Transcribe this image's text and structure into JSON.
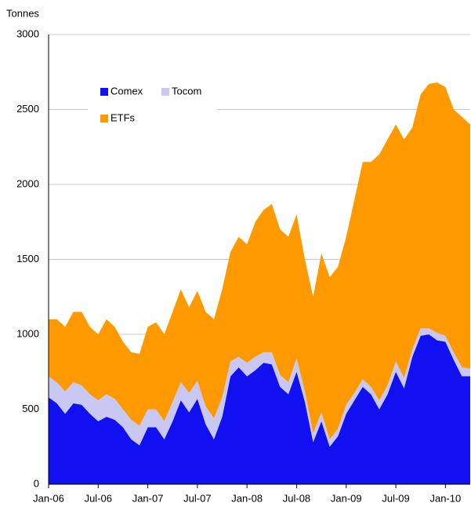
{
  "chart_data": {
    "type": "stacked_area",
    "y_label": "Tonnes",
    "categories": [
      "Jan-06",
      null,
      null,
      null,
      null,
      null,
      "Jul-06",
      null,
      null,
      null,
      null,
      null,
      "Jan-07",
      null,
      null,
      null,
      null,
      null,
      "Jul-07",
      null,
      null,
      null,
      null,
      null,
      "Jan-08",
      null,
      null,
      null,
      null,
      null,
      "Jul-08",
      null,
      null,
      null,
      null,
      null,
      "Jan-09",
      null,
      null,
      null,
      null,
      null,
      "Jul-09",
      null,
      null,
      null,
      null,
      null,
      "Jan-10",
      null,
      null,
      null
    ],
    "series": [
      {
        "name": "Comex",
        "color": "#1010f0",
        "values": [
          580,
          540,
          470,
          540,
          530,
          470,
          420,
          450,
          430,
          380,
          300,
          260,
          380,
          380,
          300,
          420,
          560,
          480,
          570,
          400,
          300,
          450,
          720,
          780,
          720,
          760,
          810,
          800,
          650,
          600,
          750,
          550,
          280,
          420,
          250,
          320,
          470,
          560,
          650,
          600,
          500,
          600,
          750,
          640,
          850,
          990,
          1000,
          960,
          950,
          830,
          720,
          720
        ]
      },
      {
        "name": "Tocom",
        "color": "#c8c8f2",
        "values": [
          140,
          140,
          150,
          140,
          130,
          130,
          140,
          150,
          140,
          120,
          130,
          130,
          120,
          120,
          120,
          130,
          120,
          130,
          120,
          120,
          140,
          130,
          100,
          70,
          90,
          90,
          70,
          80,
          80,
          80,
          90,
          70,
          60,
          60,
          50,
          50,
          60,
          50,
          50,
          50,
          60,
          60,
          70,
          70,
          50,
          50,
          40,
          50,
          40,
          50,
          60,
          50
        ]
      },
      {
        "name": "ETFs",
        "color": "#ff9900",
        "values": [
          380,
          420,
          430,
          470,
          490,
          450,
          440,
          500,
          480,
          450,
          450,
          480,
          550,
          580,
          580,
          600,
          620,
          570,
          600,
          630,
          660,
          720,
          730,
          800,
          790,
          900,
          950,
          990,
          970,
          970,
          960,
          880,
          910,
          1060,
          1080,
          1080,
          1120,
          1290,
          1450,
          1500,
          1640,
          1640,
          1580,
          1590,
          1480,
          1560,
          1630,
          1670,
          1660,
          1620,
          1670,
          1630
        ]
      }
    ],
    "ylim": [
      0,
      3000
    ],
    "yticks": [
      0,
      500,
      1000,
      1500,
      2000,
      2500,
      3000
    ],
    "grid": true,
    "legend": "top-left"
  }
}
